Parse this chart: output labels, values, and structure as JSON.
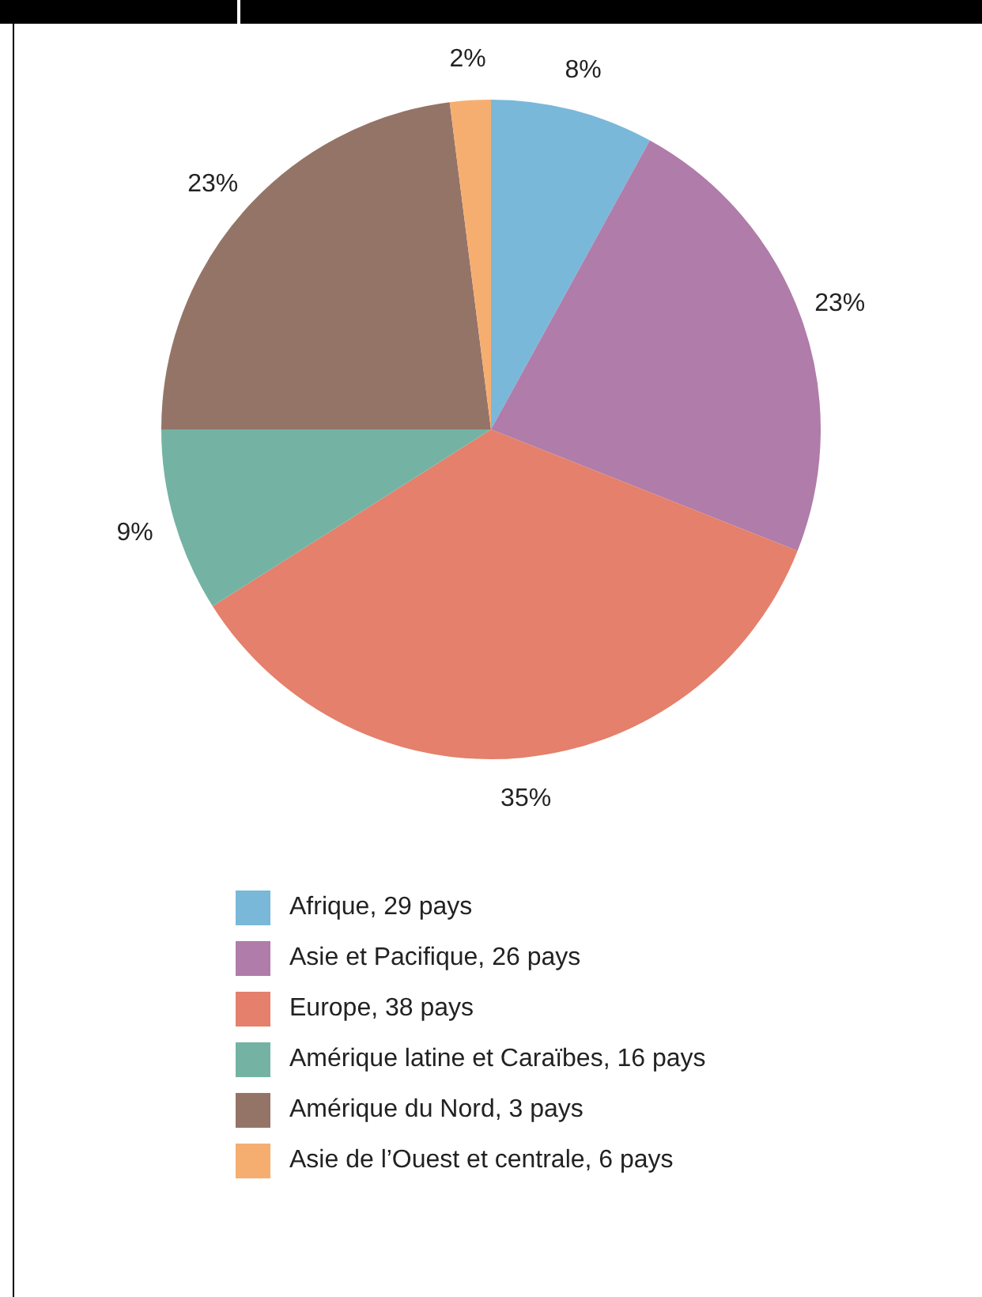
{
  "chart_data": {
    "type": "pie",
    "categories": [
      "Afrique, 29 pays",
      "Asie et Pacifique, 26 pays",
      "Europe, 38 pays",
      "Amérique latine et Caraïbes, 16 pays",
      "Amérique du Nord, 3 pays",
      "Asie de l’Ouest et centrale, 6 pays"
    ],
    "values": [
      8,
      23,
      35,
      9,
      23,
      2
    ],
    "colors": [
      "#7ab8d9",
      "#b07ca9",
      "#e4806b",
      "#74b3a4",
      "#957468",
      "#f6ae70"
    ],
    "value_labels": [
      "8%",
      "23%",
      "35%",
      "9%",
      "23%",
      "2%"
    ],
    "legend": "bottom"
  }
}
